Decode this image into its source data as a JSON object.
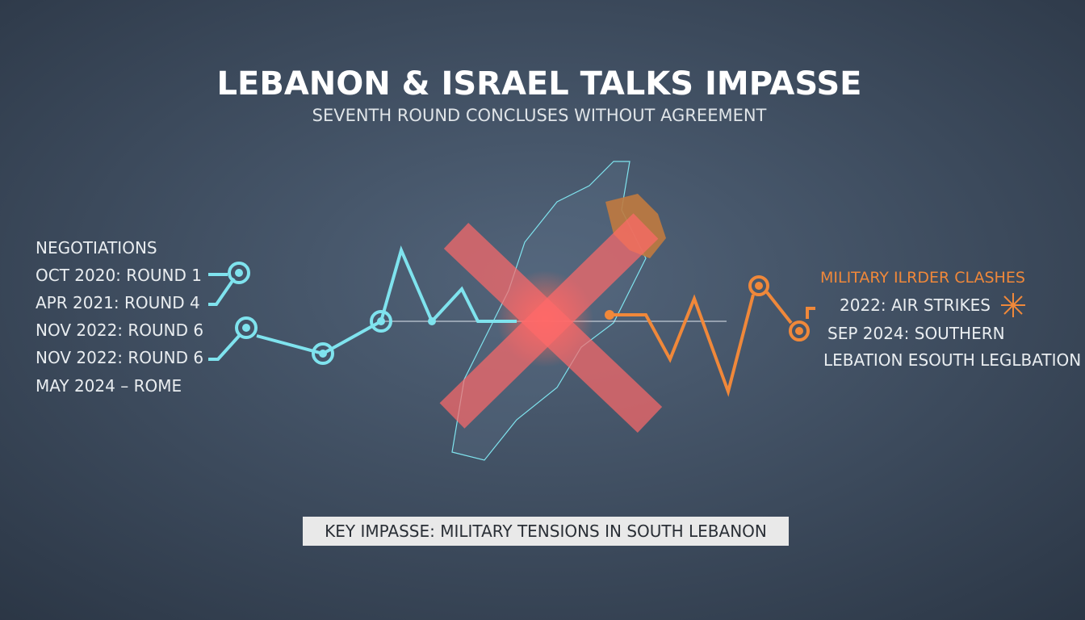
{
  "header": {
    "title": "LEBANON & ISRAEL TALKS IMPASSE",
    "subtitle": "SEVENTH ROUND CONCLUSES WITHOUT AGREEMENT"
  },
  "negotiations": {
    "heading": "NEGOTIATIONS",
    "items": [
      "OCT 2020: ROUND 1",
      "APR 2021: ROUND 4",
      "NOV 2022: ROUND 6",
      "NOV 2022: ROUND 6",
      "MAY 2024 – ROME"
    ]
  },
  "military": {
    "heading": "MILITARY ILRDER CLASHES",
    "items": [
      "2022: AIR STRIKES",
      "SEP 2024: SOUTHERN",
      "LEBATION ESOUTH LEGLBATION"
    ]
  },
  "banner": {
    "text": "KEY IMPASSE: MILITARY TENSIONS IN SOUTH LEBANON"
  }
}
